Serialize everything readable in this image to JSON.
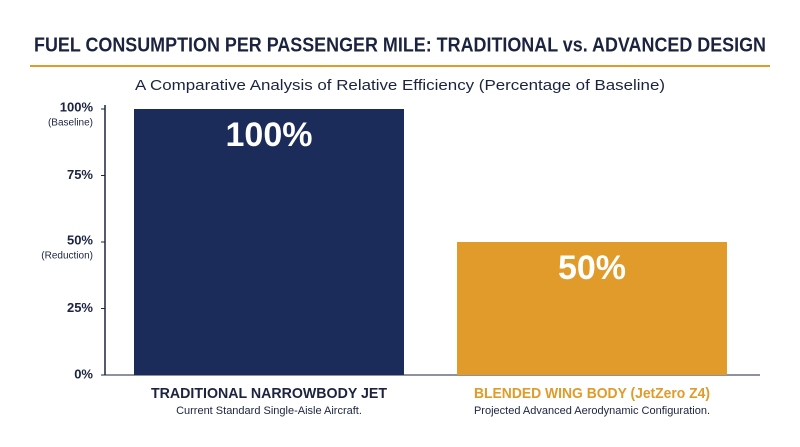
{
  "chart_data": {
    "type": "bar",
    "title": "FUEL CONSUMPTION PER PASSENGER MILE: TRADITIONAL vs. ADVANCED DESIGN",
    "subtitle": "A Comparative Analysis of Relative Efficiency (Percentage of Baseline)",
    "categories": [
      "TRADITIONAL NARROWBODY JET",
      "BLENDED WING BODY (JetZero Z4)"
    ],
    "category_descriptions": [
      "Current Standard Single-Aisle Aircraft.",
      "Projected Advanced Aerodynamic Configuration."
    ],
    "values": [
      100,
      50
    ],
    "value_labels": [
      "100%",
      "50%"
    ],
    "colors": [
      "#1b2b5a",
      "#e09b2a"
    ],
    "ylim": [
      0,
      100
    ],
    "yticks": [
      {
        "value": 0,
        "label": "0%"
      },
      {
        "value": 25,
        "label": "25%"
      },
      {
        "value": 50,
        "label": "50%",
        "note": "(Reduction)"
      },
      {
        "value": 75,
        "label": "75%"
      },
      {
        "value": 100,
        "label": "100%",
        "note": "(Baseline)"
      }
    ],
    "grid": false
  }
}
